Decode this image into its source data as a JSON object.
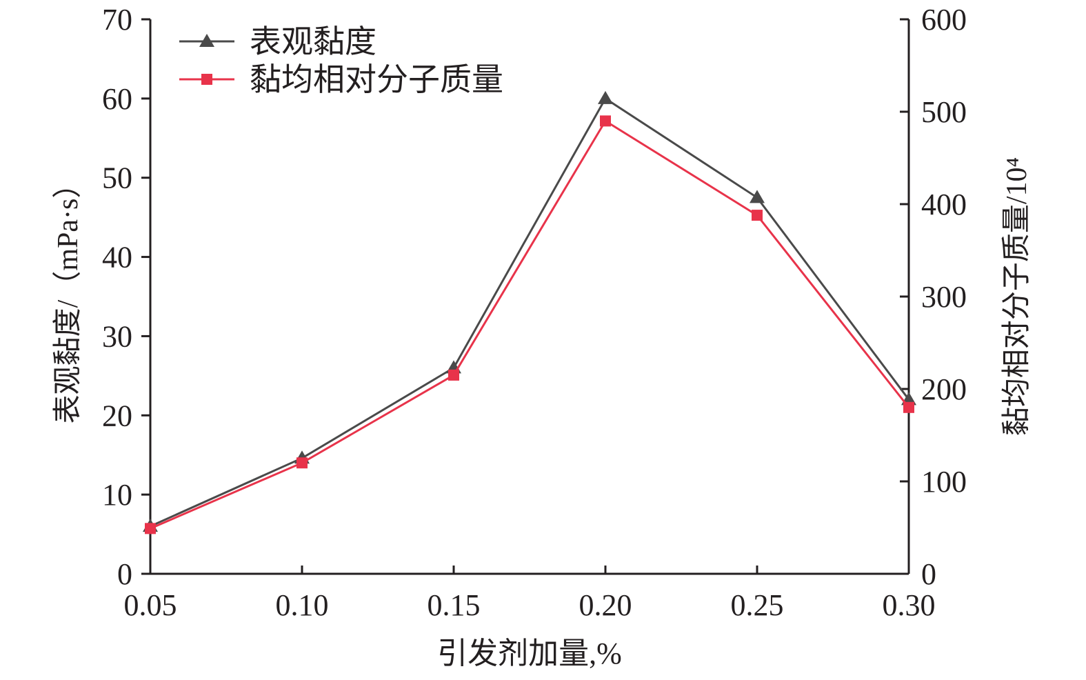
{
  "chart_data": {
    "type": "line",
    "title": "",
    "xlabel": "引发剂加量,%",
    "ylabel_left": "表观黏度/（mPa·s）",
    "ylabel_right": "黏均相对分子质量/10⁴",
    "x": [
      0.05,
      0.1,
      0.15,
      0.2,
      0.25,
      0.3
    ],
    "x_tick_labels": [
      "0.05",
      "0.10",
      "0.15",
      "0.20",
      "0.25",
      "0.30"
    ],
    "xlim": [
      0.05,
      0.3
    ],
    "ylim_left": [
      0,
      70
    ],
    "ylim_right": [
      0,
      600
    ],
    "y_left_ticks": [
      "0",
      "10",
      "20",
      "30",
      "40",
      "50",
      "60",
      "70"
    ],
    "y_right_ticks": [
      "0",
      "100",
      "200",
      "300",
      "400",
      "500",
      "600"
    ],
    "grid": false,
    "legend_position": "top-left",
    "series": [
      {
        "name": "表观黏度",
        "axis": "left",
        "marker": "triangle",
        "color": "#4a4a4a",
        "values": [
          6.0,
          14.6,
          26.0,
          60.0,
          47.5,
          22.0
        ]
      },
      {
        "name": "黏均相对分子质量",
        "axis": "right",
        "marker": "square",
        "color": "#e8334a",
        "values": [
          49,
          120,
          215,
          490,
          388,
          180
        ]
      }
    ]
  }
}
